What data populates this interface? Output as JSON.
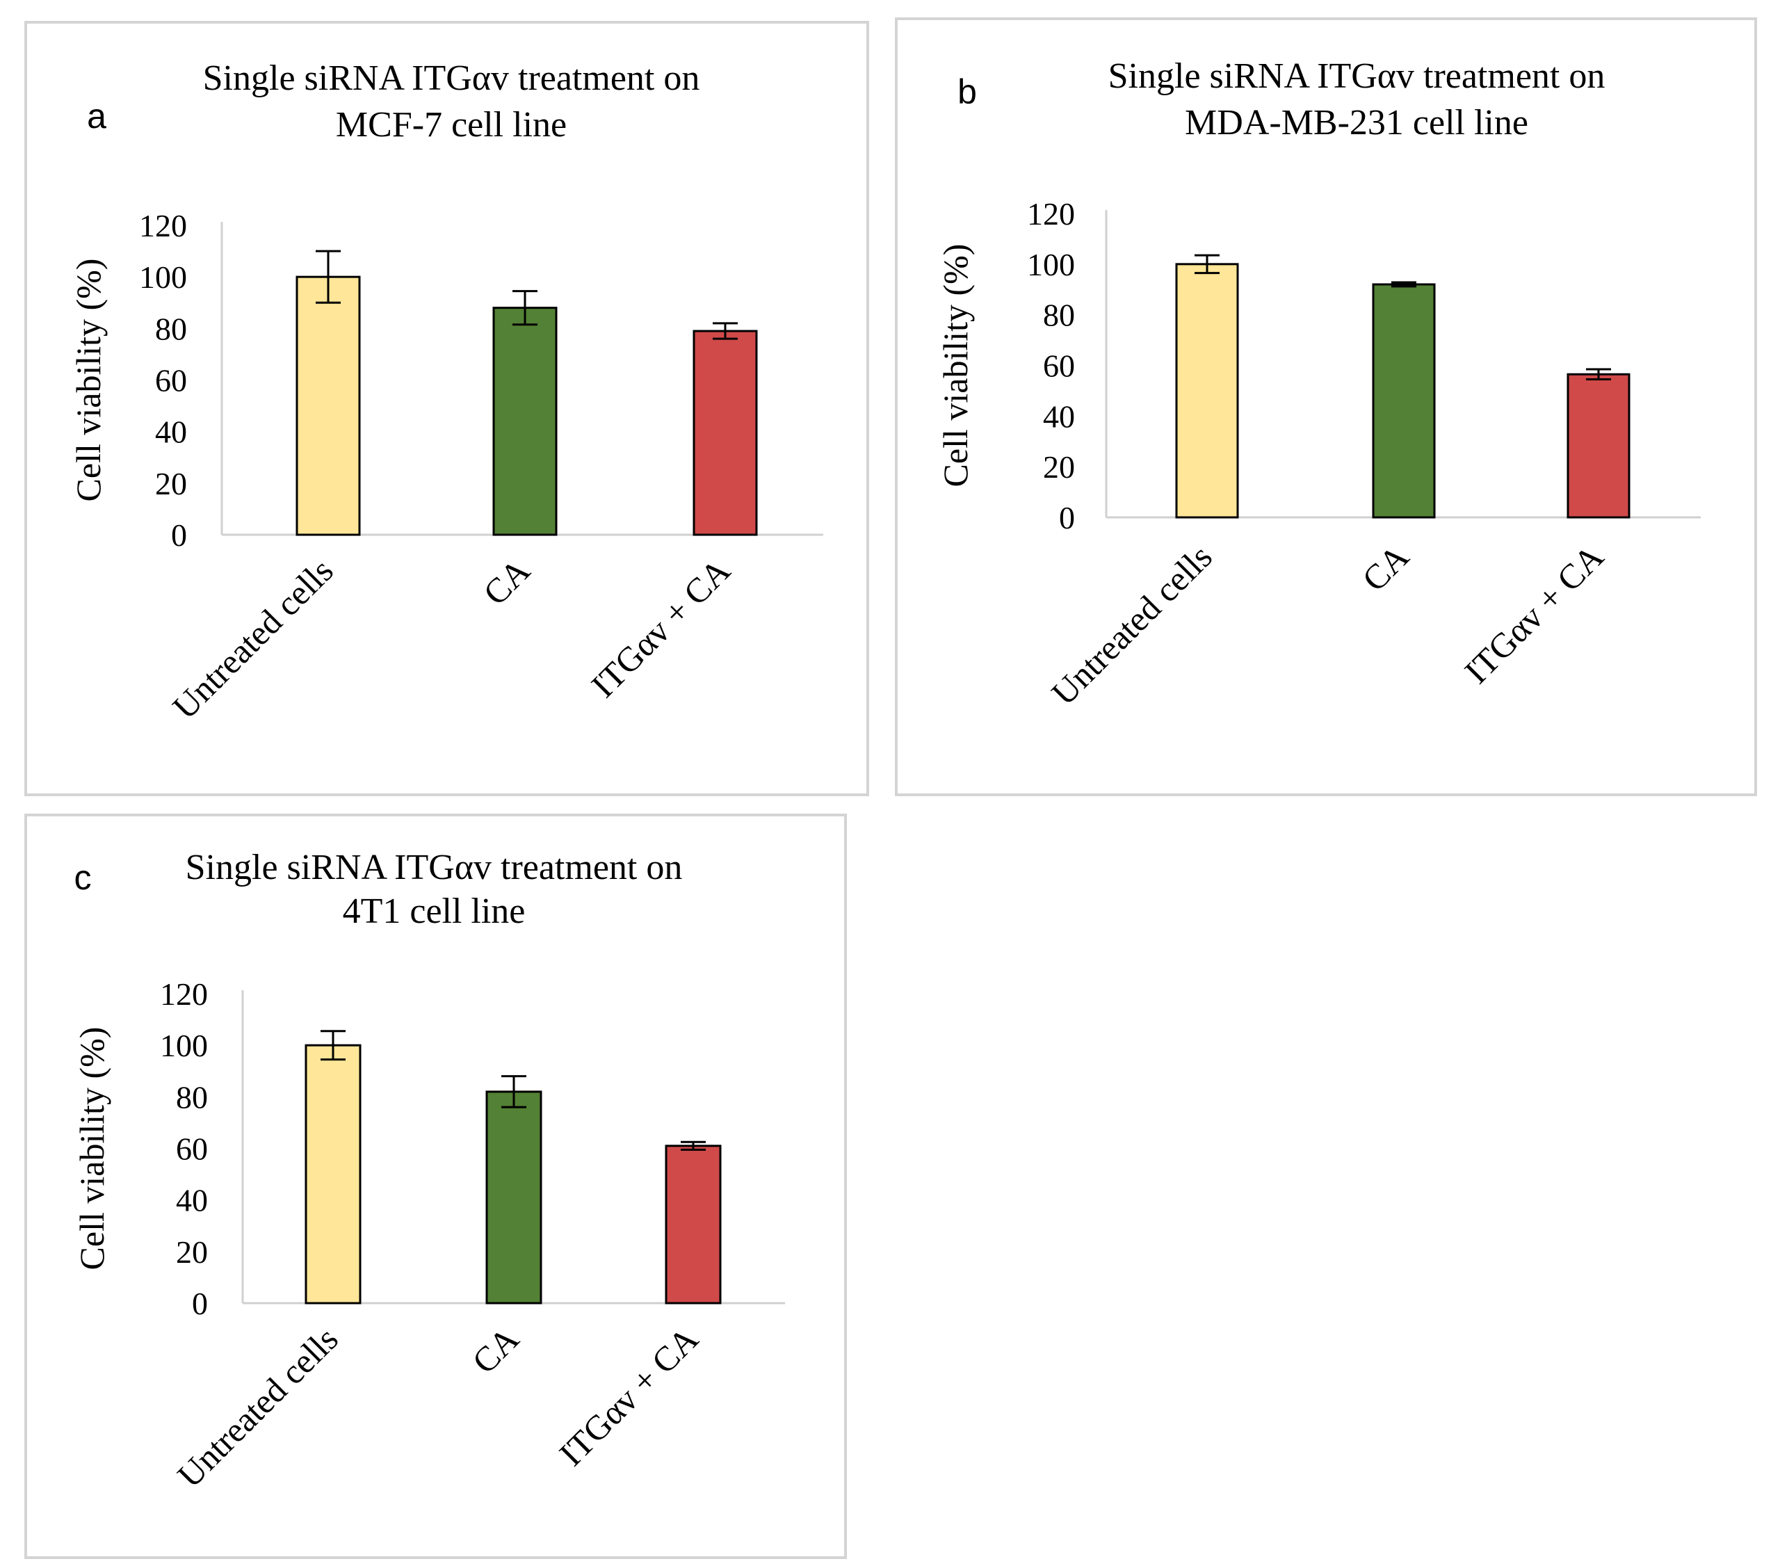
{
  "chart_data": [
    {
      "type": "bar",
      "panel_letter": "a",
      "title": [
        "Single  siRNA ITGαv treatment  on",
        "MCF-7 cell  line"
      ],
      "ylabel": "Cell  viability  (%)",
      "xlabel": "",
      "ylim": [
        0,
        120
      ],
      "yticks": [
        "0",
        "20",
        "40",
        "60",
        "80",
        "100",
        "120"
      ],
      "categories": [
        "Untreated cells",
        "CA",
        "ITGαv + CA"
      ],
      "values": [
        100,
        88,
        79
      ],
      "errors": [
        10,
        6.5,
        3
      ],
      "colors": [
        "#ffe699",
        "#538135",
        "#d04a4a"
      ]
    },
    {
      "type": "bar",
      "panel_letter": "b",
      "title": [
        "Single  siRNA ITGαv treatment  on",
        "MDA-MB-231  cell  line"
      ],
      "ylabel": "Cell  viability  (%)",
      "xlabel": "",
      "ylim": [
        0,
        120
      ],
      "yticks": [
        "0",
        "20",
        "40",
        "60",
        "80",
        "100",
        "120"
      ],
      "categories": [
        "Untreated cells",
        "CA",
        "ITGαv + CA"
      ],
      "values": [
        100,
        92,
        56.5
      ],
      "errors": [
        3.5,
        0.8,
        2
      ],
      "colors": [
        "#ffe699",
        "#538135",
        "#d04a4a"
      ]
    },
    {
      "type": "bar",
      "panel_letter": "c",
      "title": [
        "Single  siRNA ITGαv treatment  on",
        "4T1 cell  line"
      ],
      "ylabel": "Cell  viability  (%)",
      "xlabel": "",
      "ylim": [
        0,
        120
      ],
      "yticks": [
        "0",
        "20",
        "40",
        "60",
        "80",
        "100",
        "120"
      ],
      "categories": [
        "Untreated cells",
        "CA",
        "ITGαv + CA"
      ],
      "values": [
        100,
        82,
        61
      ],
      "errors": [
        5.5,
        6,
        1.5
      ],
      "colors": [
        "#ffe699",
        "#538135",
        "#d04a4a"
      ]
    }
  ]
}
